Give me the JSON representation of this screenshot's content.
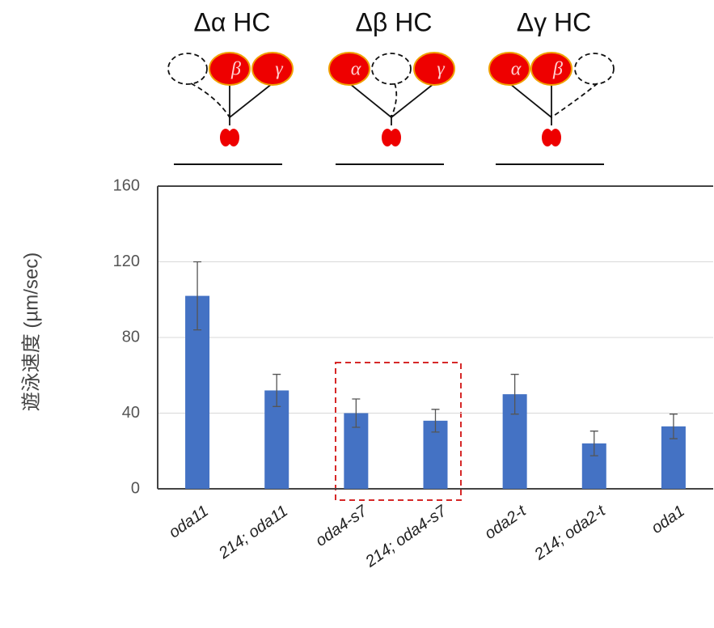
{
  "chart_data": {
    "type": "bar",
    "ylabel": "遊泳速度 (µm/sec)",
    "categories": [
      "oda11",
      "214; oda11",
      "oda4-s7",
      "214; oda4-s7",
      "oda2-t",
      "214; oda2-t",
      "oda1"
    ],
    "values": [
      102,
      52,
      40,
      36,
      50,
      24,
      33
    ],
    "errors": [
      18,
      8.5,
      7.5,
      6,
      10.5,
      6.5,
      6.5
    ],
    "color": "#4472c4",
    "ylim": [
      0,
      160
    ],
    "yticks": [
      0,
      40,
      80,
      120,
      160
    ],
    "grid": true,
    "diagrams": [
      {
        "title": "Δα HC",
        "heads": [
          null,
          "β",
          "γ"
        ]
      },
      {
        "title": "Δβ HC",
        "heads": [
          "α",
          null,
          "γ"
        ]
      },
      {
        "title": "Δγ HC",
        "heads": [
          "α",
          "β",
          null
        ]
      }
    ]
  }
}
